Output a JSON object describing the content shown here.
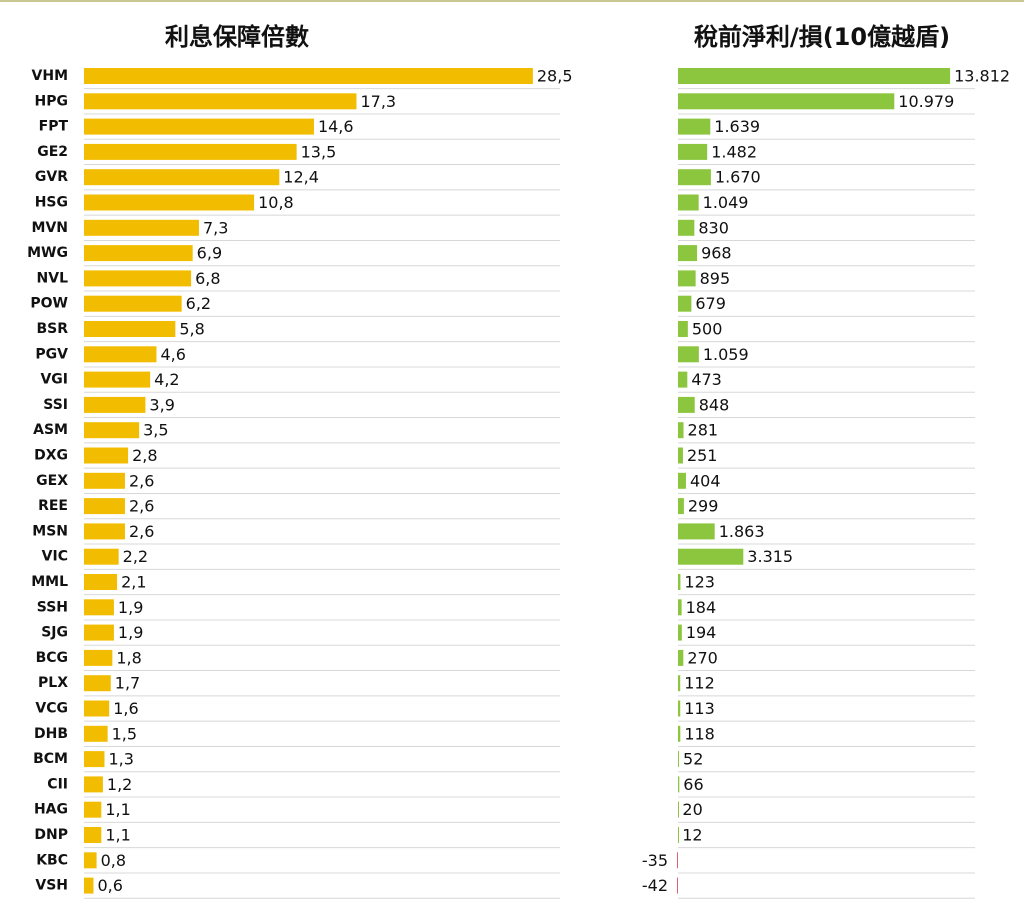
{
  "chart_data": {
    "type": "bar",
    "orientation": "horizontal",
    "categories": [
      "VHM",
      "HPG",
      "FPT",
      "GE2",
      "GVR",
      "HSG",
      "MVN",
      "MWG",
      "NVL",
      "POW",
      "BSR",
      "PGV",
      "VGI",
      "SSI",
      "ASM",
      "DXG",
      "GEX",
      "REE",
      "MSN",
      "VIC",
      "MML",
      "SSH",
      "SJG",
      "BCG",
      "PLX",
      "VCG",
      "DHB",
      "BCM",
      "CII",
      "HAG",
      "DNP",
      "KBC",
      "VSH"
    ],
    "grid": true,
    "series": [
      {
        "name": "利息保障倍數",
        "color": "#f2bd00",
        "values": [
          28.5,
          17.3,
          14.6,
          13.5,
          12.4,
          10.8,
          7.3,
          6.9,
          6.8,
          6.2,
          5.8,
          4.6,
          4.2,
          3.9,
          3.5,
          2.8,
          2.6,
          2.6,
          2.6,
          2.2,
          2.1,
          1.9,
          1.9,
          1.8,
          1.7,
          1.6,
          1.5,
          1.3,
          1.2,
          1.1,
          1.1,
          0.8,
          0.6
        ],
        "value_labels": [
          "28,5",
          "17,3",
          "14,6",
          "13,5",
          "12,4",
          "10,8",
          "7,3",
          "6,9",
          "6,8",
          "6,2",
          "5,8",
          "4,6",
          "4,2",
          "3,9",
          "3,5",
          "2,8",
          "2,6",
          "2,6",
          "2,6",
          "2,2",
          "2,1",
          "1,9",
          "1,9",
          "1,8",
          "1,7",
          "1,6",
          "1,5",
          "1,3",
          "1,2",
          "1,1",
          "1,1",
          "0,8",
          "0,6"
        ]
      },
      {
        "name": "稅前淨利/損(10億越盾)",
        "color": "#8cc63f",
        "negative_color": "#e06070",
        "values": [
          13812,
          10979,
          1639,
          1482,
          1670,
          1049,
          830,
          968,
          895,
          679,
          500,
          1059,
          473,
          848,
          281,
          251,
          404,
          299,
          1863,
          3315,
          123,
          184,
          194,
          270,
          112,
          113,
          118,
          52,
          66,
          20,
          12,
          -35,
          -42
        ],
        "value_labels": [
          "13.812",
          "10.979",
          "1.639",
          "1.482",
          "1.670",
          "1.049",
          "830",
          "968",
          "895",
          "679",
          "500",
          "1.059",
          "473",
          "848",
          "281",
          "251",
          "404",
          "299",
          "1.863",
          "3.315",
          "123",
          "184",
          "194",
          "270",
          "112",
          "113",
          "118",
          "52",
          "66",
          "20",
          "12",
          "-35",
          "-42"
        ]
      }
    ]
  }
}
